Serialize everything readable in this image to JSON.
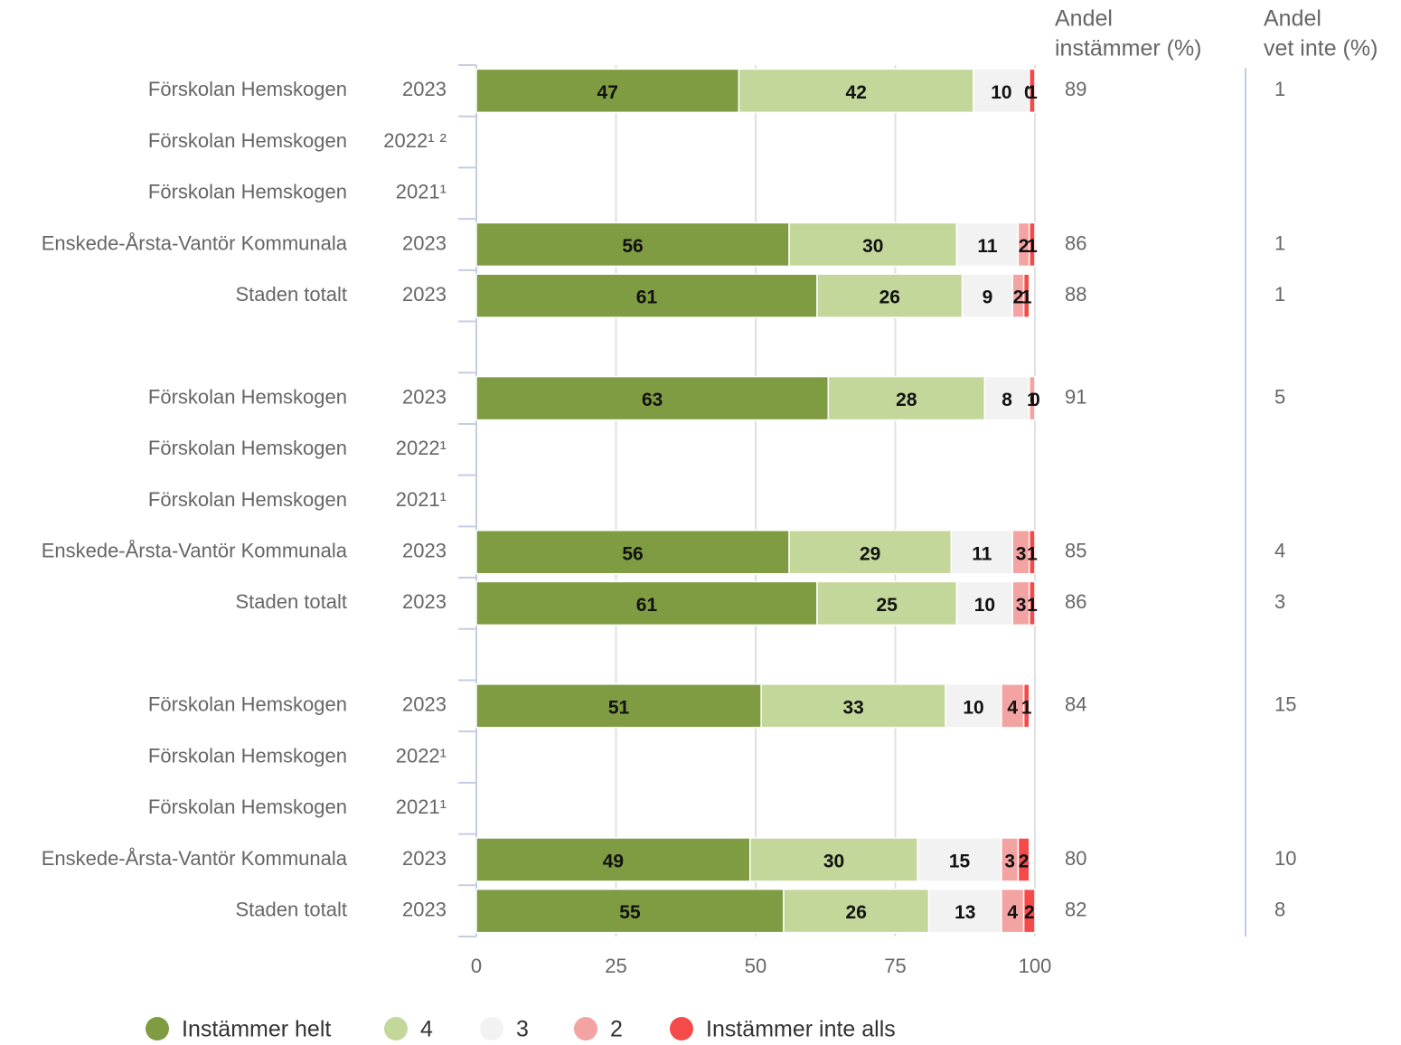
{
  "chart_data": {
    "type": "stacked_bar_horizontal",
    "categories": [
      "Förskolan Hemskogen",
      "Förskolan Hemskogen",
      "Förskolan Hemskogen",
      "Enskede-Årsta-Vantör Kommunala",
      "Staden totalt",
      null,
      "Förskolan Hemskogen",
      "Förskolan Hemskogen",
      "Förskolan Hemskogen",
      "Enskede-Årsta-Vantör Kommunala",
      "Staden totalt",
      null,
      "Förskolan Hemskogen",
      "Förskolan Hemskogen",
      "Förskolan Hemskogen",
      "Enskede-Årsta-Vantör Kommunala",
      "Staden totalt"
    ],
    "years": [
      "2023",
      "2022¹ ²",
      "2021¹",
      "2023",
      "2023",
      null,
      "2023",
      "2022¹",
      "2021¹",
      "2023",
      "2023",
      null,
      "2023",
      "2022¹",
      "2021¹",
      "2023",
      "2023"
    ],
    "series": [
      {
        "name": "Instämmer helt",
        "color": "#7f9c42",
        "values": [
          47,
          null,
          null,
          56,
          61,
          null,
          63,
          null,
          null,
          56,
          61,
          null,
          51,
          null,
          null,
          49,
          55
        ]
      },
      {
        "name": "4",
        "color": "#c4d79b",
        "values": [
          42,
          null,
          null,
          30,
          26,
          null,
          28,
          null,
          null,
          29,
          25,
          null,
          33,
          null,
          null,
          30,
          26
        ]
      },
      {
        "name": "3",
        "color": "#f2f2f2",
        "values": [
          10,
          null,
          null,
          11,
          9,
          null,
          8,
          null,
          null,
          11,
          10,
          null,
          10,
          null,
          null,
          15,
          13
        ]
      },
      {
        "name": "2",
        "color": "#f4a3a3",
        "values": [
          0,
          null,
          null,
          2,
          2,
          null,
          1,
          null,
          null,
          3,
          3,
          null,
          4,
          null,
          null,
          3,
          4
        ]
      },
      {
        "name": "Instämmer inte alls",
        "color": "#f44a4a",
        "values": [
          1,
          null,
          null,
          1,
          1,
          null,
          0,
          null,
          null,
          1,
          1,
          null,
          1,
          null,
          null,
          2,
          2
        ]
      }
    ],
    "columns": [
      {
        "header": [
          "Andel",
          "instämmer (%)"
        ],
        "values": [
          89,
          null,
          null,
          86,
          88,
          null,
          91,
          null,
          null,
          85,
          86,
          null,
          84,
          null,
          null,
          80,
          82
        ]
      },
      {
        "header": [
          "Andel",
          "vet inte (%)"
        ],
        "values": [
          1,
          null,
          null,
          1,
          1,
          null,
          5,
          null,
          null,
          4,
          3,
          null,
          15,
          null,
          null,
          10,
          8
        ]
      }
    ],
    "xlim": [
      0,
      100
    ],
    "xticks": [
      0,
      25,
      50,
      75,
      100
    ],
    "grid": true,
    "legend": "bottom"
  }
}
